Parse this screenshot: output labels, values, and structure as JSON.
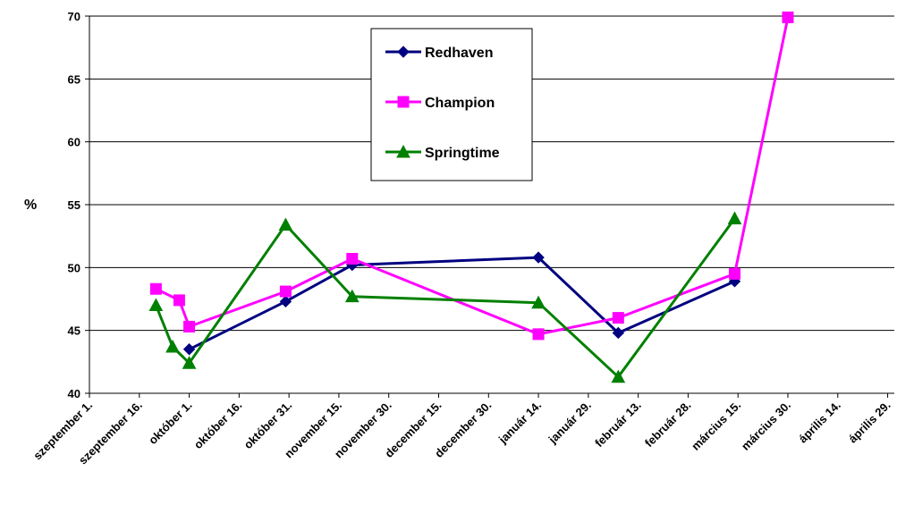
{
  "chart_data": {
    "type": "line",
    "title": "",
    "ylabel": "%",
    "xlabel": "",
    "ylim": [
      40,
      70
    ],
    "yticks": [
      40,
      45,
      50,
      55,
      60,
      65,
      70
    ],
    "xlim": [
      "2000-09-01",
      "2001-05-01"
    ],
    "x_tick_labels": [
      "szeptember 1.",
      "szeptember 16.",
      "október 1.",
      "október 16.",
      "október 31.",
      "november 15.",
      "november 30.",
      "december 15.",
      "december 30.",
      "január 14.",
      "január 29.",
      "február 13.",
      "február 28.",
      "március 15.",
      "március 30.",
      "április 14.",
      "április 29."
    ],
    "x_tick_dates": [
      "2000-09-01",
      "2000-09-16",
      "2000-10-01",
      "2000-10-16",
      "2000-10-31",
      "2000-11-15",
      "2000-11-30",
      "2000-12-15",
      "2000-12-30",
      "2001-01-14",
      "2001-01-29",
      "2001-02-13",
      "2001-02-28",
      "2001-03-15",
      "2001-03-30",
      "2001-04-14",
      "2001-04-29"
    ],
    "grid": "horizontal",
    "legend_position": "top-center",
    "series": [
      {
        "name": "Redhaven",
        "color": "#000080",
        "marker": "diamond",
        "points": [
          {
            "x": "2000-10-01",
            "y": 43.5
          },
          {
            "x": "2000-10-30",
            "y": 47.3
          },
          {
            "x": "2000-11-19",
            "y": 50.2
          },
          {
            "x": "2001-01-14",
            "y": 50.8
          },
          {
            "x": "2001-02-07",
            "y": 44.8
          },
          {
            "x": "2001-03-14",
            "y": 48.9
          }
        ]
      },
      {
        "name": "Champion",
        "color": "#ff00ff",
        "marker": "square",
        "points": [
          {
            "x": "2000-09-21",
            "y": 48.3
          },
          {
            "x": "2000-09-28",
            "y": 47.4
          },
          {
            "x": "2000-10-01",
            "y": 45.3
          },
          {
            "x": "2000-10-30",
            "y": 48.1
          },
          {
            "x": "2000-11-19",
            "y": 50.7
          },
          {
            "x": "2001-01-14",
            "y": 44.7
          },
          {
            "x": "2001-02-07",
            "y": 46.0
          },
          {
            "x": "2001-03-14",
            "y": 49.5
          },
          {
            "x": "2001-03-30",
            "y": 69.9
          }
        ]
      },
      {
        "name": "Springtime",
        "color": "#008000",
        "marker": "triangle",
        "points": [
          {
            "x": "2000-09-21",
            "y": 47.0
          },
          {
            "x": "2000-09-26",
            "y": 43.7
          },
          {
            "x": "2000-10-01",
            "y": 42.4
          },
          {
            "x": "2000-10-30",
            "y": 53.4
          },
          {
            "x": "2000-11-19",
            "y": 47.7
          },
          {
            "x": "2001-01-14",
            "y": 47.2
          },
          {
            "x": "2001-02-07",
            "y": 41.3
          },
          {
            "x": "2001-03-14",
            "y": 53.9
          }
        ]
      }
    ]
  }
}
